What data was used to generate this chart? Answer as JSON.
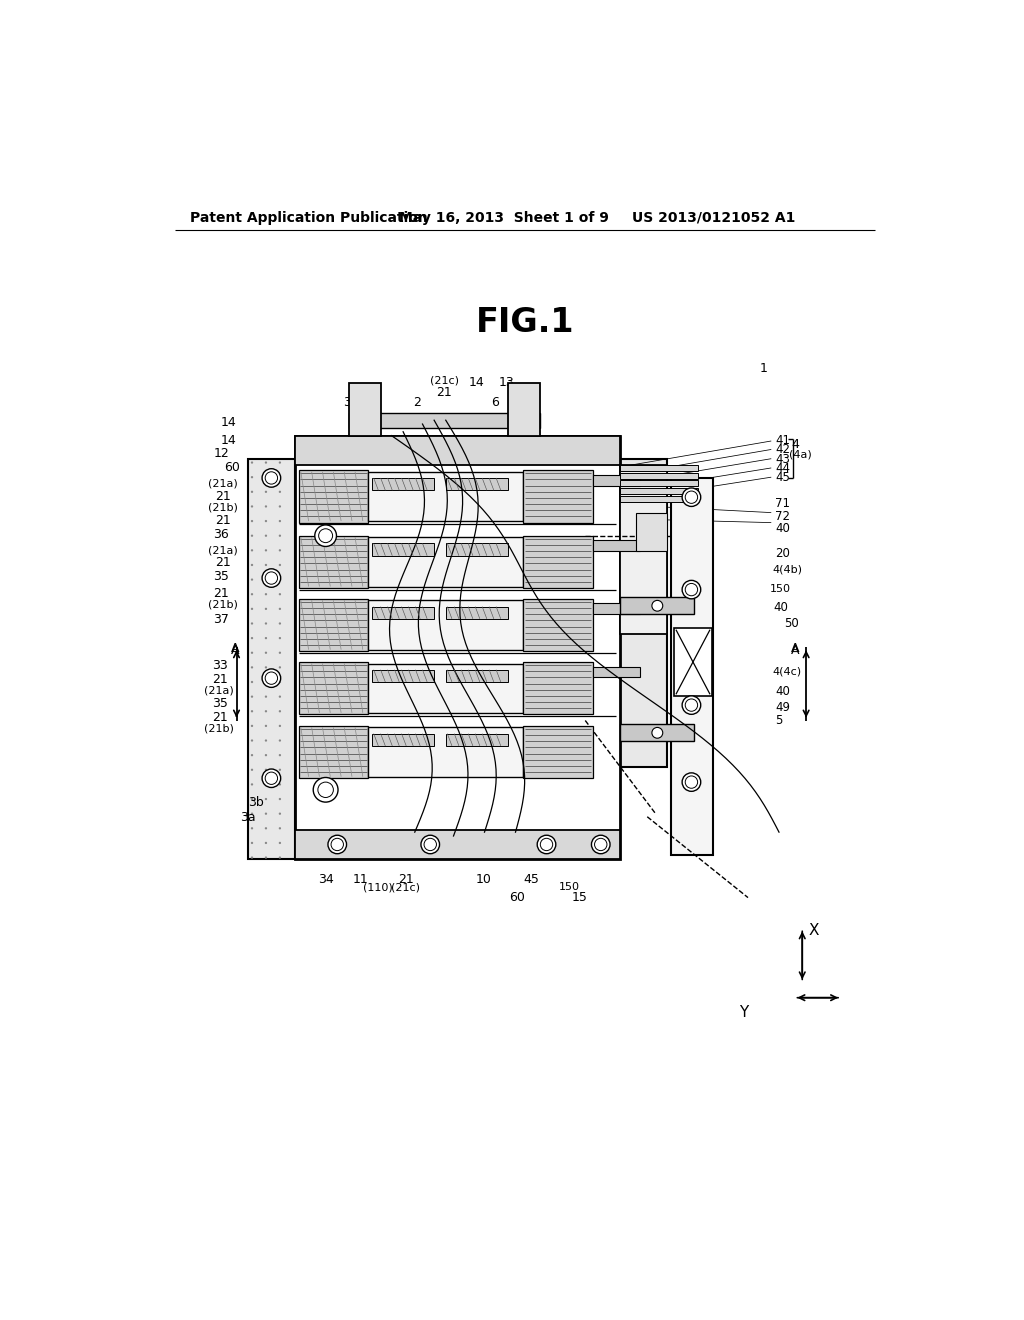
{
  "bg": "#ffffff",
  "header_left": "Patent Application Publication",
  "header_mid": "May 16, 2013  Sheet 1 of 9",
  "header_right": "US 2013/0121052 A1",
  "fig_title": "FIG.1",
  "lc": "#000000",
  "lg": "#e0e0e0",
  "md": "#c0c0c0",
  "dk": "#909090",
  "dot": "#b0b0b0"
}
